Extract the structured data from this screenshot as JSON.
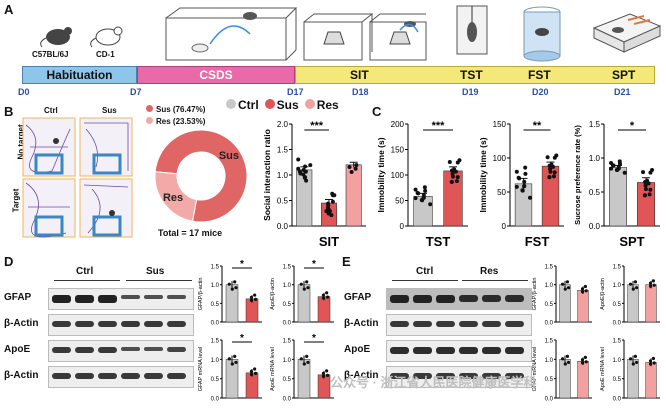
{
  "panels": {
    "A": "A",
    "B": "B",
    "C": "C",
    "D": "D",
    "E": "E"
  },
  "strains": {
    "c57": "C57BL/6J",
    "cd1": "CD-1"
  },
  "timeline": {
    "stages": [
      "Habituation",
      "CSDS",
      "SIT",
      "TST",
      "FST",
      "SPT"
    ],
    "days": [
      "D0",
      "D7",
      "D17",
      "D18",
      "D19",
      "D20",
      "D21"
    ],
    "colors": {
      "habituation": "#8ec6ea",
      "csds": "#e86aa8",
      "rest": "#f3e879"
    }
  },
  "heatmap": {
    "cols": [
      "Ctrl",
      "Sus"
    ],
    "rows": [
      "No target",
      "Target"
    ]
  },
  "donut": {
    "legend": [
      "Sus (76.47%)",
      "Res (23.53%)"
    ],
    "slices": [
      {
        "label": "Sus",
        "value": 76.47,
        "color": "#e06666"
      },
      {
        "label": "Res",
        "value": 23.53,
        "color": "#f4a9a9"
      }
    ],
    "total": "Total = 17 mice"
  },
  "group_legend": [
    "Ctrl",
    "Sus",
    "Res"
  ],
  "group_colors": {
    "ctrl": "#c8c8c8",
    "sus": "#e05555",
    "res": "#f2a0a0"
  },
  "chart_data": [
    {
      "type": "bar",
      "categories": [
        "Ctrl",
        "Sus",
        "Res"
      ],
      "values": [
        1.1,
        0.45,
        1.2
      ],
      "errors": [
        0.06,
        0.07,
        0.05
      ],
      "ylabel": "Social interaction ratio",
      "xlabel": "SIT",
      "ylim": [
        0,
        2.0
      ],
      "yticks": [
        "0.0",
        "0.5",
        "1.0",
        "1.5",
        "2.0"
      ],
      "sig": "***"
    },
    {
      "type": "bar",
      "categories": [
        "Ctrl",
        "Sus"
      ],
      "values": [
        58,
        108
      ],
      "errors": [
        6,
        8
      ],
      "ylabel": "Immobility time (s)",
      "xlabel": "TST",
      "ylim": [
        0,
        200
      ],
      "yticks": [
        "0",
        "50",
        "100",
        "150",
        "200"
      ],
      "sig": "***"
    },
    {
      "type": "bar",
      "categories": [
        "Ctrl",
        "Sus"
      ],
      "values": [
        62,
        88
      ],
      "errors": [
        8,
        6
      ],
      "ylabel": "Immobility time (s)",
      "xlabel": "FST",
      "ylim": [
        0,
        150
      ],
      "yticks": [
        "0",
        "50",
        "100",
        "150"
      ],
      "sig": "**"
    },
    {
      "type": "bar",
      "categories": [
        "Ctrl",
        "Sus"
      ],
      "values": [
        0.86,
        0.64
      ],
      "errors": [
        0.03,
        0.07
      ],
      "ylabel": "Sucrose preference rate (%)",
      "xlabel": "SPT",
      "ylim": [
        0,
        1.5
      ],
      "yticks": [
        "0.0",
        "0.5",
        "1.0",
        "1.5"
      ],
      "sig": "*"
    }
  ],
  "western": {
    "D": {
      "groups": [
        "Ctrl",
        "Sus"
      ],
      "rows": [
        "GFAP",
        "β-Actin",
        "ApoE",
        "β-Actin"
      ]
    },
    "E": {
      "groups": [
        "Ctrl",
        "Res"
      ],
      "rows": [
        "GFAP",
        "β-Actin",
        "ApoE",
        "β-Actin"
      ]
    }
  },
  "small_charts": {
    "D": [
      {
        "ylabel": "GFAP/β-actin",
        "values": [
          1.0,
          0.62
        ],
        "yticks": [
          "0.0",
          "0.5",
          "1.0",
          "1.5"
        ],
        "sig": "*"
      },
      {
        "ylabel": "ApoE/β-actin",
        "values": [
          1.0,
          0.68
        ],
        "yticks": [
          "0.0",
          "0.5",
          "1.0",
          "1.5"
        ],
        "sig": "*"
      },
      {
        "ylabel": "GFAP mRNA level",
        "values": [
          1.0,
          0.65
        ],
        "yticks": [
          "0.0",
          "0.5",
          "1.0",
          "1.5"
        ],
        "sig": "*"
      },
      {
        "ylabel": "ApoE mRNA level",
        "values": [
          1.0,
          0.6
        ],
        "yticks": [
          "0.0",
          "0.5",
          "1.0",
          "1.5"
        ],
        "sig": "*"
      }
    ],
    "E": [
      {
        "ylabel": "GFAP/β-actin",
        "values": [
          1.0,
          0.85
        ],
        "yticks": [
          "0.0",
          "0.5",
          "1.0",
          "1.5"
        ],
        "sig": ""
      },
      {
        "ylabel": "ApoE/β-actin",
        "values": [
          1.0,
          1.0
        ],
        "yticks": [
          "0.0",
          "0.5",
          "1.0",
          "1.5"
        ],
        "sig": ""
      },
      {
        "ylabel": "GFAP mRNA level",
        "values": [
          1.0,
          0.95
        ],
        "yticks": [
          "0.0",
          "0.5",
          "1.0",
          "1.5"
        ],
        "sig": ""
      },
      {
        "ylabel": "ApoE mRNA level",
        "values": [
          1.0,
          0.92
        ],
        "yticks": [
          "0.0",
          "0.5",
          "1.0",
          "1.5"
        ],
        "sig": ""
      }
    ]
  },
  "watermark": "公众号 · 浙江省人民医院健康医学科"
}
